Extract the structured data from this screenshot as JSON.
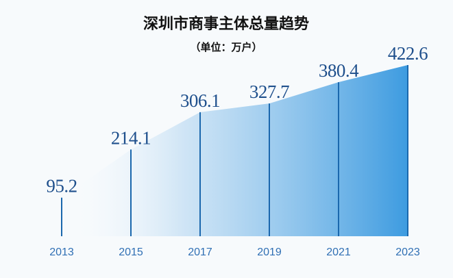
{
  "chart_data": {
    "type": "area",
    "title": "深圳市商事主体总量趋势",
    "subtitle": "（单位：万户）",
    "categories": [
      "2013",
      "2015",
      "2017",
      "2019",
      "2021",
      "2023"
    ],
    "values": [
      95.2,
      214.1,
      306.1,
      327.7,
      380.4,
      422.6
    ],
    "color": "#3d9be0",
    "line_color": "#1a67ad"
  }
}
